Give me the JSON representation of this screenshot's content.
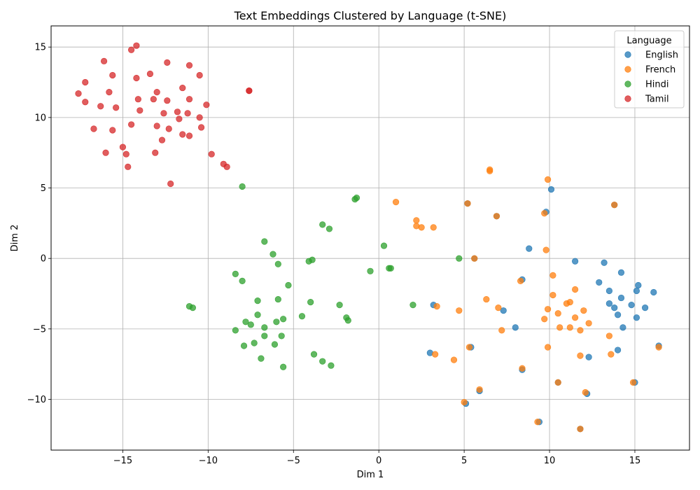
{
  "chart_data": {
    "type": "scatter",
    "title": "Text Embeddings Clustered by Language (t-SNE)",
    "xlabel": "Dim 1",
    "ylabel": "Dim 2",
    "xlim": [
      -19.2,
      18.2
    ],
    "ylim": [
      -13.6,
      16.5
    ],
    "xticks": [
      -15,
      -10,
      -5,
      0,
      5,
      10,
      15
    ],
    "yticks": [
      -10,
      -5,
      0,
      5,
      10,
      15
    ],
    "grid": true,
    "legend": {
      "title": "Language",
      "placement": "top-right"
    },
    "series": [
      {
        "name": "English",
        "color": "#1f77b4",
        "points": [
          [
            10.1,
            4.9
          ],
          [
            9.8,
            3.3
          ],
          [
            8.8,
            0.7
          ],
          [
            11.5,
            -0.2
          ],
          [
            13.2,
            -0.3
          ],
          [
            14.2,
            -1.0
          ],
          [
            8.4,
            -1.5
          ],
          [
            12.9,
            -1.7
          ],
          [
            15.2,
            -1.9
          ],
          [
            13.5,
            -2.3
          ],
          [
            15.1,
            -2.3
          ],
          [
            16.1,
            -2.4
          ],
          [
            14.2,
            -2.8
          ],
          [
            13.5,
            -3.2
          ],
          [
            14.8,
            -3.3
          ],
          [
            3.2,
            -3.3
          ],
          [
            13.8,
            -3.5
          ],
          [
            15.6,
            -3.5
          ],
          [
            7.3,
            -3.7
          ],
          [
            14.0,
            -4.0
          ],
          [
            15.1,
            -4.2
          ],
          [
            8.0,
            -4.9
          ],
          [
            14.3,
            -4.9
          ],
          [
            14.0,
            -6.5
          ],
          [
            3.0,
            -6.7
          ],
          [
            12.3,
            -7.0
          ],
          [
            5.4,
            -6.3
          ],
          [
            16.4,
            -6.2
          ],
          [
            8.4,
            -7.9
          ],
          [
            10.5,
            -8.8
          ],
          [
            15.0,
            -8.8
          ],
          [
            5.9,
            -9.4
          ],
          [
            12.2,
            -9.6
          ],
          [
            5.1,
            -10.3
          ],
          [
            9.4,
            -11.6
          ],
          [
            11.8,
            -12.1
          ],
          [
            5.2,
            3.9
          ],
          [
            6.9,
            3.0
          ],
          [
            13.8,
            3.8
          ],
          [
            5.6,
            0.0
          ]
        ]
      },
      {
        "name": "French",
        "color": "#ff7f0e",
        "points": [
          [
            6.5,
            6.3
          ],
          [
            6.5,
            6.2
          ],
          [
            9.9,
            5.6
          ],
          [
            1.0,
            4.0
          ],
          [
            5.2,
            3.9
          ],
          [
            13.8,
            3.8
          ],
          [
            2.2,
            2.7
          ],
          [
            6.9,
            3.0
          ],
          [
            9.7,
            3.2
          ],
          [
            2.2,
            2.3
          ],
          [
            2.5,
            2.2
          ],
          [
            3.2,
            2.2
          ],
          [
            9.8,
            0.6
          ],
          [
            5.6,
            0.0
          ],
          [
            10.2,
            -1.2
          ],
          [
            8.3,
            -1.6
          ],
          [
            11.5,
            -2.2
          ],
          [
            10.2,
            -2.6
          ],
          [
            6.3,
            -2.9
          ],
          [
            11.2,
            -3.1
          ],
          [
            11.0,
            -3.2
          ],
          [
            7.0,
            -3.5
          ],
          [
            3.4,
            -3.4
          ],
          [
            9.9,
            -3.6
          ],
          [
            4.7,
            -3.7
          ],
          [
            12.0,
            -3.7
          ],
          [
            10.5,
            -3.9
          ],
          [
            11.5,
            -4.2
          ],
          [
            9.7,
            -4.3
          ],
          [
            12.3,
            -4.6
          ],
          [
            10.6,
            -4.9
          ],
          [
            11.2,
            -4.9
          ],
          [
            7.2,
            -5.1
          ],
          [
            11.8,
            -5.1
          ],
          [
            13.5,
            -5.5
          ],
          [
            9.9,
            -6.3
          ],
          [
            5.3,
            -6.3
          ],
          [
            16.4,
            -6.3
          ],
          [
            3.3,
            -6.8
          ],
          [
            11.8,
            -6.9
          ],
          [
            13.6,
            -6.8
          ],
          [
            4.4,
            -7.2
          ],
          [
            8.4,
            -7.8
          ],
          [
            10.5,
            -8.8
          ],
          [
            14.9,
            -8.8
          ],
          [
            5.9,
            -9.3
          ],
          [
            12.1,
            -9.5
          ],
          [
            5.0,
            -10.2
          ],
          [
            9.3,
            -11.6
          ],
          [
            11.8,
            -12.1
          ]
        ]
      },
      {
        "name": "Hindi",
        "color": "#2ca02c",
        "points": [
          [
            -8.0,
            5.1
          ],
          [
            -1.3,
            4.3
          ],
          [
            -1.4,
            4.2
          ],
          [
            -3.3,
            2.4
          ],
          [
            -2.9,
            2.1
          ],
          [
            -6.7,
            1.2
          ],
          [
            0.3,
            0.9
          ],
          [
            -6.2,
            0.3
          ],
          [
            -3.9,
            -0.1
          ],
          [
            -4.1,
            -0.2
          ],
          [
            4.7,
            0.0
          ],
          [
            -5.9,
            -0.4
          ],
          [
            0.6,
            -0.7
          ],
          [
            0.7,
            -0.7
          ],
          [
            -0.5,
            -0.9
          ],
          [
            -8.4,
            -1.1
          ],
          [
            -8.0,
            -1.6
          ],
          [
            -5.3,
            -1.9
          ],
          [
            -7.1,
            -3.0
          ],
          [
            -4.0,
            -3.1
          ],
          [
            -2.3,
            -3.3
          ],
          [
            -11.1,
            -3.4
          ],
          [
            -10.9,
            -3.5
          ],
          [
            2.0,
            -3.3
          ],
          [
            -5.9,
            -2.9
          ],
          [
            -7.1,
            -4.0
          ],
          [
            -4.5,
            -4.1
          ],
          [
            -1.9,
            -4.2
          ],
          [
            -5.6,
            -4.3
          ],
          [
            -7.8,
            -4.5
          ],
          [
            -6.0,
            -4.5
          ],
          [
            -1.8,
            -4.4
          ],
          [
            -7.5,
            -4.7
          ],
          [
            -6.7,
            -4.9
          ],
          [
            -8.4,
            -5.1
          ],
          [
            -6.7,
            -5.5
          ],
          [
            -5.7,
            -5.5
          ],
          [
            -7.3,
            -6.0
          ],
          [
            -6.1,
            -6.1
          ],
          [
            -7.9,
            -6.2
          ],
          [
            -3.8,
            -6.8
          ],
          [
            -6.9,
            -7.1
          ],
          [
            -3.3,
            -7.3
          ],
          [
            -2.8,
            -7.6
          ],
          [
            -5.6,
            -7.7
          ]
        ]
      },
      {
        "name": "Tamil",
        "color": "#d62728",
        "points": [
          [
            -14.2,
            15.1
          ],
          [
            -14.5,
            14.8
          ],
          [
            -16.1,
            14.0
          ],
          [
            -12.4,
            13.9
          ],
          [
            -11.1,
            13.7
          ],
          [
            -15.6,
            13.0
          ],
          [
            -13.4,
            13.1
          ],
          [
            -10.5,
            13.0
          ],
          [
            -14.2,
            12.8
          ],
          [
            -17.2,
            12.5
          ],
          [
            -11.5,
            12.1
          ],
          [
            -7.6,
            11.9
          ],
          [
            -7.6,
            11.9
          ],
          [
            -15.8,
            11.8
          ],
          [
            -13.0,
            11.8
          ],
          [
            -17.6,
            11.7
          ],
          [
            -14.1,
            11.3
          ],
          [
            -13.2,
            11.3
          ],
          [
            -11.1,
            11.3
          ],
          [
            -17.2,
            11.1
          ],
          [
            -12.4,
            11.2
          ],
          [
            -16.3,
            10.8
          ],
          [
            -15.4,
            10.7
          ],
          [
            -10.1,
            10.9
          ],
          [
            -14.0,
            10.5
          ],
          [
            -11.8,
            10.4
          ],
          [
            -11.2,
            10.3
          ],
          [
            -12.6,
            10.3
          ],
          [
            -10.5,
            10.0
          ],
          [
            -11.7,
            9.9
          ],
          [
            -14.5,
            9.5
          ],
          [
            -13.0,
            9.4
          ],
          [
            -10.4,
            9.3
          ],
          [
            -16.7,
            9.2
          ],
          [
            -12.3,
            9.2
          ],
          [
            -15.6,
            9.1
          ],
          [
            -11.5,
            8.8
          ],
          [
            -11.1,
            8.7
          ],
          [
            -12.7,
            8.4
          ],
          [
            -15.0,
            7.9
          ],
          [
            -16.0,
            7.5
          ],
          [
            -14.8,
            7.4
          ],
          [
            -13.1,
            7.5
          ],
          [
            -9.8,
            7.4
          ],
          [
            -9.1,
            6.7
          ],
          [
            -8.9,
            6.5
          ],
          [
            -14.7,
            6.5
          ],
          [
            -12.2,
            5.3
          ]
        ]
      }
    ]
  }
}
